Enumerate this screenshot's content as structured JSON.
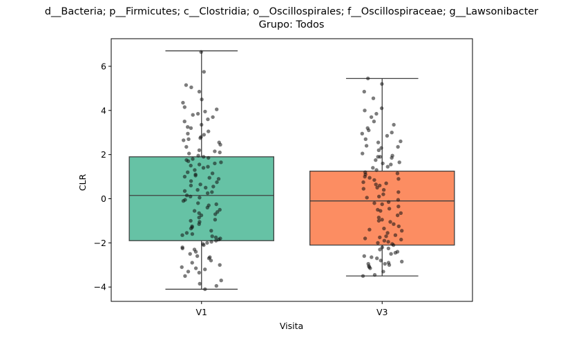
{
  "chart_data": {
    "type": "box",
    "title": "d__Bacteria; p__Firmicutes; c__Clostridia; o__Oscillospirales; f__Oscillospiraceae; g__Lawsonibacter",
    "subtitle": "Grupo: Todos",
    "xlabel": "Visita",
    "ylabel": "CLR",
    "categories": [
      "V1",
      "V3"
    ],
    "yticks": [
      -4,
      -2,
      0,
      2,
      4,
      6
    ],
    "ylim": [
      -4.65,
      7.25
    ],
    "grid": false,
    "colors": {
      "V1": "#66c2a5",
      "V3": "#fc8d62",
      "box_edge": "#3f3f3f",
      "points": "#111111"
    },
    "boxes": [
      {
        "category": "V1",
        "whisker_low": -4.1,
        "q1": -1.9,
        "median": 0.15,
        "q3": 1.9,
        "whisker_high": 6.7
      },
      {
        "category": "V3",
        "whisker_low": -3.5,
        "q1": -2.1,
        "median": -0.1,
        "q3": 1.25,
        "whisker_high": 5.45
      }
    ],
    "points": {
      "V1": [
        6.65,
        5.75,
        5.15,
        5.05,
        4.85,
        4.5,
        4.15,
        4.05,
        3.95,
        3.85,
        3.8,
        3.7,
        3.6,
        3.5,
        3.35,
        3.2,
        3.05,
        2.95,
        2.9,
        2.8,
        2.7,
        2.65,
        2.55,
        2.45,
        2.35,
        2.2,
        2.1,
        2.05,
        1.95,
        1.9,
        1.85,
        1.8,
        1.7,
        1.65,
        1.55,
        1.5,
        1.4,
        1.3,
        1.2,
        1.15,
        1.1,
        1.05,
        1.0,
        0.9,
        0.8,
        0.75,
        0.65,
        0.6,
        0.5,
        0.4,
        0.3,
        0.25,
        0.15,
        0.1,
        0.05,
        -0.05,
        -0.1,
        -0.2,
        -0.3,
        -0.4,
        -0.5,
        -0.55,
        -0.65,
        -0.75,
        -0.85,
        -0.95,
        -1.05,
        -1.15,
        -1.25,
        -1.35,
        -1.45,
        -1.55,
        -1.6,
        -1.7,
        -1.75,
        -1.8,
        -1.85,
        -1.9,
        -1.95,
        -2.0,
        -2.1,
        -2.2,
        -2.3,
        -2.4,
        -2.5,
        -2.6,
        -2.7,
        -2.8,
        -2.9,
        -3.0,
        -3.1,
        -3.15,
        -3.2,
        -3.35,
        -3.5,
        -3.7,
        -3.85,
        -3.95,
        -4.1,
        2.75,
        1.75,
        0.55,
        -0.6,
        -1.3,
        -2.25,
        3.25,
        -2.65,
        0.95,
        1.45,
        -0.25,
        -1.0,
        2.15,
        -3.3,
        4.35,
        0.35,
        -1.65,
        -2.05,
        1.6,
        -0.7
      ],
      "V3": [
        5.45,
        5.2,
        4.85,
        4.55,
        4.1,
        4.0,
        3.85,
        3.7,
        3.5,
        3.35,
        3.2,
        3.1,
        2.95,
        2.85,
        2.7,
        2.55,
        2.4,
        2.3,
        2.2,
        2.05,
        1.95,
        1.9,
        1.85,
        1.75,
        1.65,
        1.55,
        1.45,
        1.4,
        1.3,
        1.2,
        1.15,
        1.1,
        1.0,
        0.95,
        0.85,
        0.75,
        0.7,
        0.6,
        0.5,
        0.4,
        0.3,
        0.2,
        0.1,
        0.05,
        -0.05,
        -0.15,
        -0.25,
        -0.35,
        -0.45,
        -0.55,
        -0.65,
        -0.75,
        -0.85,
        -0.95,
        -1.05,
        -1.15,
        -1.25,
        -1.35,
        -1.45,
        -1.55,
        -1.65,
        -1.75,
        -1.8,
        -1.85,
        -1.9,
        -1.95,
        -2.0,
        -2.05,
        -2.1,
        -2.2,
        -2.3,
        -2.4,
        -2.5,
        -2.6,
        -2.7,
        -2.8,
        -2.85,
        -2.9,
        -2.95,
        -3.0,
        -3.05,
        -3.15,
        -3.3,
        -3.45,
        -3.5,
        2.6,
        1.6,
        0.45,
        -0.5,
        -1.4,
        -2.25,
        -2.65,
        3.0,
        -0.2,
        0.9,
        -1.7,
        1.9,
        -2.45,
        -3.1,
        0.65,
        -1.0,
        2.35,
        -2.95
      ]
    }
  }
}
